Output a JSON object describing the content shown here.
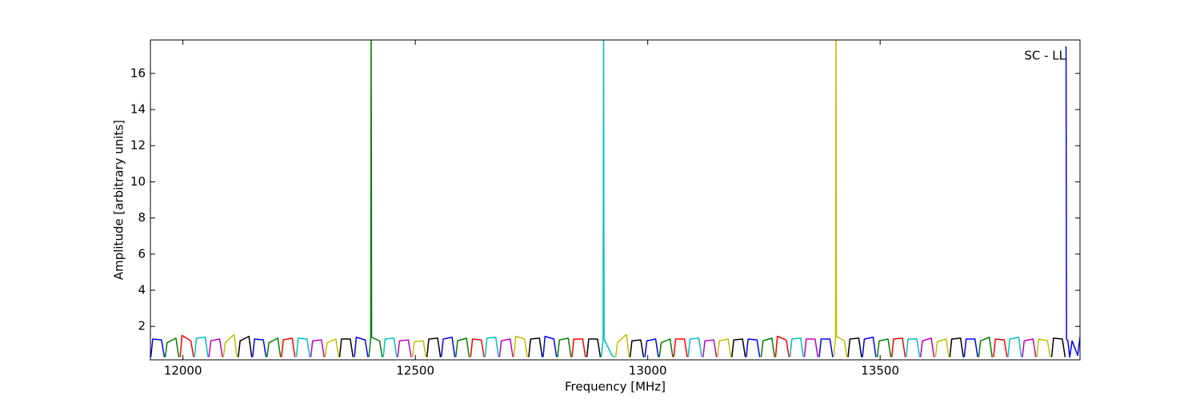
{
  "chart_data": {
    "type": "line",
    "xlabel": "Frequency [MHz]",
    "ylabel": "Amplitude [arbitrary units]",
    "annotation": "SC - LL",
    "xlim": [
      11930,
      13930
    ],
    "ylim": [
      0.15,
      17.85
    ],
    "xticks": [
      12000,
      12500,
      13000,
      13500
    ],
    "yticks": [
      2,
      4,
      6,
      8,
      10,
      12,
      14,
      16
    ],
    "series": [
      {
        "color": "#0000ff",
        "x": [
          11931,
          11935,
          11954,
          11960
        ],
        "values": [
          0.3,
          1.3,
          1.25,
          0.3
        ]
      },
      {
        "color": "#008000",
        "x": [
          11962,
          11966,
          11985,
          11991
        ],
        "values": [
          0.3,
          1.1,
          1.35,
          0.3
        ]
      },
      {
        "color": "#ff0000",
        "x": [
          11994,
          11998,
          12017,
          12023
        ],
        "values": [
          0.3,
          1.5,
          1.2,
          0.3
        ]
      },
      {
        "color": "#00bfbf",
        "x": [
          12025,
          12029,
          12048,
          12054
        ],
        "values": [
          0.3,
          1.35,
          1.4,
          0.3
        ]
      },
      {
        "color": "#bf00bf",
        "x": [
          12056,
          12060,
          12079,
          12085
        ],
        "values": [
          0.3,
          1.2,
          1.3,
          0.3
        ]
      },
      {
        "color": "#bfbf00",
        "x": [
          12087,
          12091,
          12110,
          12116
        ],
        "values": [
          0.3,
          1.1,
          1.55,
          0.3
        ]
      },
      {
        "color": "#000000",
        "x": [
          12119,
          12123,
          12142,
          12148
        ],
        "values": [
          0.3,
          1.2,
          1.45,
          0.3
        ]
      },
      {
        "color": "#0000ff",
        "x": [
          12150,
          12154,
          12173,
          12179
        ],
        "values": [
          0.3,
          1.3,
          1.25,
          0.3
        ]
      },
      {
        "color": "#008000",
        "x": [
          12181,
          12185,
          12204,
          12210
        ],
        "values": [
          0.3,
          1.1,
          1.35,
          0.3
        ]
      },
      {
        "color": "#ff0000",
        "x": [
          12212,
          12216,
          12235,
          12241
        ],
        "values": [
          0.3,
          1.25,
          1.35,
          0.3
        ]
      },
      {
        "color": "#00bfbf",
        "x": [
          12244,
          12248,
          12267,
          12273
        ],
        "values": [
          0.3,
          1.35,
          1.3,
          0.3
        ]
      },
      {
        "color": "#bf00bf",
        "x": [
          12275,
          12279,
          12298,
          12304
        ],
        "values": [
          0.3,
          1.2,
          1.25,
          0.3
        ]
      },
      {
        "color": "#bfbf00",
        "x": [
          12306,
          12310,
          12329,
          12335
        ],
        "values": [
          0.3,
          1.1,
          1.3,
          0.3
        ]
      },
      {
        "color": "#000000",
        "x": [
          12337,
          12341,
          12360,
          12366
        ],
        "values": [
          0.3,
          1.3,
          1.3,
          0.3
        ]
      },
      {
        "color": "#0000ff",
        "x": [
          12369,
          12373,
          12392,
          12398
        ],
        "values": [
          0.3,
          1.4,
          1.25,
          0.3
        ]
      },
      {
        "color": "#008000",
        "x": [
          12400,
          12404,
          12405,
          12406,
          12423,
          12429
        ],
        "values": [
          0.3,
          1.3,
          19,
          1.4,
          1.2,
          0.3
        ]
      },
      {
        "color": "#00bfbf",
        "x": [
          12431,
          12435,
          12454,
          12460
        ],
        "values": [
          0.3,
          1.3,
          1.35,
          0.3
        ]
      },
      {
        "color": "#bf00bf",
        "x": [
          12462,
          12466,
          12485,
          12491
        ],
        "values": [
          0.3,
          1.2,
          1.25,
          0.3
        ]
      },
      {
        "color": "#bfbf00",
        "x": [
          12494,
          12498,
          12517,
          12523
        ],
        "values": [
          0.3,
          1.15,
          1.2,
          0.3
        ]
      },
      {
        "color": "#000000",
        "x": [
          12525,
          12529,
          12548,
          12554
        ],
        "values": [
          0.3,
          1.3,
          1.35,
          0.3
        ]
      },
      {
        "color": "#0000ff",
        "x": [
          12556,
          12560,
          12579,
          12585
        ],
        "values": [
          0.3,
          1.3,
          1.4,
          0.3
        ]
      },
      {
        "color": "#008000",
        "x": [
          12587,
          12591,
          12610,
          12616
        ],
        "values": [
          0.3,
          1.2,
          1.35,
          0.3
        ]
      },
      {
        "color": "#ff0000",
        "x": [
          12619,
          12623,
          12642,
          12648
        ],
        "values": [
          0.3,
          1.3,
          1.25,
          0.3
        ]
      },
      {
        "color": "#00bfbf",
        "x": [
          12650,
          12654,
          12673,
          12679
        ],
        "values": [
          0.3,
          1.35,
          1.4,
          0.3
        ]
      },
      {
        "color": "#bf00bf",
        "x": [
          12681,
          12685,
          12704,
          12710
        ],
        "values": [
          0.3,
          1.2,
          1.3,
          0.3
        ]
      },
      {
        "color": "#bfbf00",
        "x": [
          12712,
          12716,
          12735,
          12741
        ],
        "values": [
          0.3,
          1.45,
          1.3,
          0.3
        ]
      },
      {
        "color": "#000000",
        "x": [
          12744,
          12748,
          12767,
          12773
        ],
        "values": [
          0.3,
          1.3,
          1.35,
          0.3
        ]
      },
      {
        "color": "#0000ff",
        "x": [
          12775,
          12779,
          12798,
          12804
        ],
        "values": [
          0.3,
          1.45,
          1.3,
          0.3
        ]
      },
      {
        "color": "#008000",
        "x": [
          12806,
          12810,
          12829,
          12835
        ],
        "values": [
          0.3,
          1.25,
          1.35,
          0.3
        ]
      },
      {
        "color": "#ff0000",
        "x": [
          12837,
          12841,
          12860,
          12866
        ],
        "values": [
          0.3,
          1.3,
          1.3,
          0.3
        ]
      },
      {
        "color": "#000000",
        "x": [
          12869,
          12873,
          12892,
          12898
        ],
        "values": [
          0.3,
          1.3,
          1.3,
          0.3
        ]
      },
      {
        "color": "#00bfbf",
        "x": [
          12900,
          12904,
          12905,
          12906,
          12923,
          12929
        ],
        "values": [
          0.3,
          1.3,
          19,
          1.3,
          0.4,
          0.3
        ]
      },
      {
        "color": "#bfbf00",
        "x": [
          12931,
          12935,
          12954,
          12960
        ],
        "values": [
          0.3,
          1.1,
          1.55,
          0.3
        ]
      },
      {
        "color": "#000000",
        "x": [
          12962,
          12966,
          12985,
          12991
        ],
        "values": [
          0.3,
          1.2,
          1.25,
          0.3
        ]
      },
      {
        "color": "#0000ff",
        "x": [
          12994,
          12998,
          13017,
          13023
        ],
        "values": [
          0.3,
          1.2,
          1.3,
          0.3
        ]
      },
      {
        "color": "#008000",
        "x": [
          13025,
          13029,
          13048,
          13054
        ],
        "values": [
          0.3,
          1.1,
          1.3,
          0.3
        ]
      },
      {
        "color": "#ff0000",
        "x": [
          13056,
          13060,
          13079,
          13085
        ],
        "values": [
          0.3,
          1.3,
          1.3,
          0.3
        ]
      },
      {
        "color": "#00bfbf",
        "x": [
          13087,
          13091,
          13110,
          13116
        ],
        "values": [
          0.3,
          1.3,
          1.35,
          0.3
        ]
      },
      {
        "color": "#bf00bf",
        "x": [
          13119,
          13123,
          13142,
          13148
        ],
        "values": [
          0.3,
          1.2,
          1.25,
          0.3
        ]
      },
      {
        "color": "#bfbf00",
        "x": [
          13150,
          13154,
          13173,
          13179
        ],
        "values": [
          0.3,
          1.2,
          1.3,
          0.3
        ]
      },
      {
        "color": "#000000",
        "x": [
          13181,
          13185,
          13204,
          13210
        ],
        "values": [
          0.3,
          1.25,
          1.3,
          0.3
        ]
      },
      {
        "color": "#0000ff",
        "x": [
          13212,
          13216,
          13235,
          13241
        ],
        "values": [
          0.3,
          1.3,
          1.25,
          0.3
        ]
      },
      {
        "color": "#008000",
        "x": [
          13244,
          13248,
          13267,
          13273
        ],
        "values": [
          0.3,
          1.2,
          1.35,
          0.3
        ]
      },
      {
        "color": "#ff0000",
        "x": [
          13275,
          13279,
          13298,
          13304
        ],
        "values": [
          0.3,
          1.45,
          1.25,
          0.3
        ]
      },
      {
        "color": "#00bfbf",
        "x": [
          13306,
          13310,
          13329,
          13335
        ],
        "values": [
          0.3,
          1.3,
          1.35,
          0.3
        ]
      },
      {
        "color": "#bf00bf",
        "x": [
          13337,
          13341,
          13360,
          13366
        ],
        "values": [
          0.3,
          1.3,
          1.3,
          0.3
        ]
      },
      {
        "color": "#0000ff",
        "x": [
          13369,
          13373,
          13392,
          13398
        ],
        "values": [
          0.3,
          1.3,
          1.3,
          0.3
        ]
      },
      {
        "color": "#bfbf00",
        "x": [
          13400,
          13404,
          13405,
          13406,
          13423,
          13429
        ],
        "values": [
          0.3,
          1.4,
          19,
          1.45,
          1.2,
          0.3
        ]
      },
      {
        "color": "#000000",
        "x": [
          13431,
          13435,
          13454,
          13460
        ],
        "values": [
          0.3,
          1.3,
          1.35,
          0.3
        ]
      },
      {
        "color": "#0000ff",
        "x": [
          13462,
          13466,
          13485,
          13491
        ],
        "values": [
          0.3,
          1.3,
          1.4,
          0.3
        ]
      },
      {
        "color": "#008000",
        "x": [
          13494,
          13498,
          13517,
          13523
        ],
        "values": [
          0.3,
          1.2,
          1.3,
          0.3
        ]
      },
      {
        "color": "#ff0000",
        "x": [
          13525,
          13529,
          13548,
          13554
        ],
        "values": [
          0.3,
          1.3,
          1.35,
          0.3
        ]
      },
      {
        "color": "#00bfbf",
        "x": [
          13556,
          13560,
          13579,
          13585
        ],
        "values": [
          0.3,
          1.3,
          1.3,
          0.3
        ]
      },
      {
        "color": "#bf00bf",
        "x": [
          13587,
          13591,
          13610,
          13616
        ],
        "values": [
          0.3,
          1.2,
          1.35,
          0.3
        ]
      },
      {
        "color": "#bfbf00",
        "x": [
          13619,
          13623,
          13642,
          13648
        ],
        "values": [
          0.3,
          1.15,
          1.3,
          0.3
        ]
      },
      {
        "color": "#000000",
        "x": [
          13650,
          13654,
          13673,
          13679
        ],
        "values": [
          0.3,
          1.3,
          1.35,
          0.3
        ]
      },
      {
        "color": "#0000ff",
        "x": [
          13681,
          13685,
          13704,
          13710
        ],
        "values": [
          0.3,
          1.3,
          1.3,
          0.3
        ]
      },
      {
        "color": "#008000",
        "x": [
          13712,
          13716,
          13735,
          13741
        ],
        "values": [
          0.3,
          1.2,
          1.4,
          0.3
        ]
      },
      {
        "color": "#ff0000",
        "x": [
          13744,
          13748,
          13767,
          13773
        ],
        "values": [
          0.3,
          1.3,
          1.25,
          0.3
        ]
      },
      {
        "color": "#00bfbf",
        "x": [
          13775,
          13779,
          13798,
          13804
        ],
        "values": [
          0.3,
          1.3,
          1.4,
          0.3
        ]
      },
      {
        "color": "#bf00bf",
        "x": [
          13806,
          13810,
          13829,
          13835
        ],
        "values": [
          0.3,
          1.2,
          1.3,
          0.3
        ]
      },
      {
        "color": "#bfbf00",
        "x": [
          13837,
          13841,
          13860,
          13866
        ],
        "values": [
          0.3,
          1.3,
          1.2,
          0.3
        ]
      },
      {
        "color": "#000000",
        "x": [
          13869,
          13873,
          13892,
          13898
        ],
        "values": [
          0.3,
          1.35,
          1.3,
          0.3
        ]
      },
      {
        "color": "#0000ff",
        "x": [
          13900,
          13901,
          13904,
          13908,
          13913,
          13925,
          13930
        ],
        "values": [
          17.5,
          1.3,
          1.2,
          0.3,
          1.2,
          0.4,
          1.4
        ]
      }
    ]
  }
}
